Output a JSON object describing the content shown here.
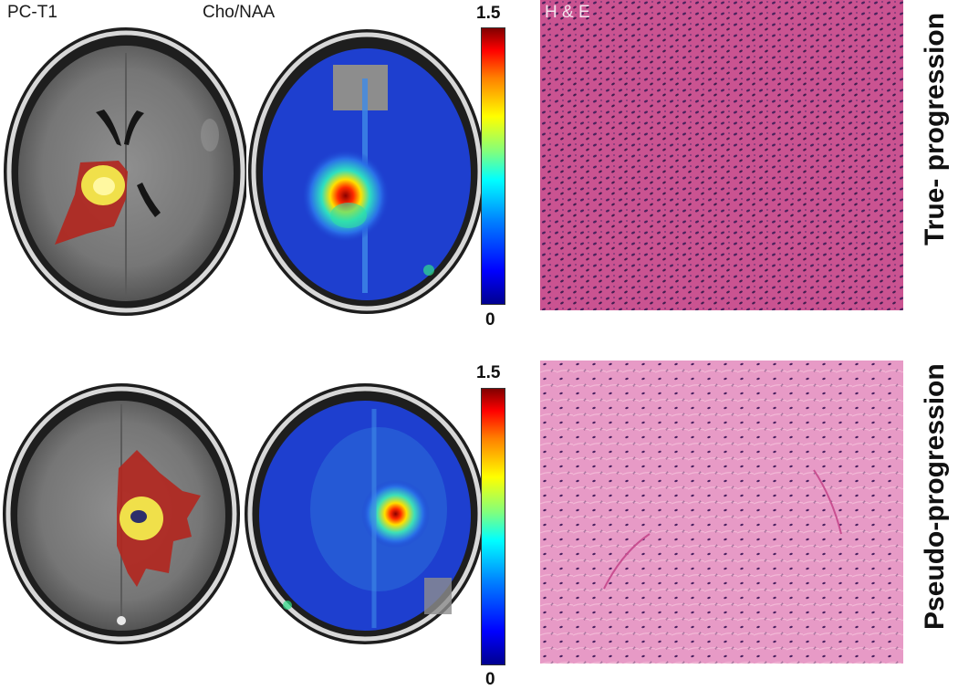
{
  "headers": {
    "pc_t1": "PC-T1",
    "cho_naa": "Cho/NAA",
    "he": "H & E"
  },
  "colorbar_top": {
    "max_label": "1.5",
    "min_label": "0"
  },
  "colorbar_bottom": {
    "max_label": "1.5",
    "min_label": "0"
  },
  "row_labels": {
    "top": "True- progression",
    "bottom": "Pseudo-progression"
  },
  "colors": {
    "colormap_low": "#00008f",
    "colormap_high": "#800000",
    "lesion_overlay": "#b3261e",
    "lesion_core": "#f0e04a",
    "he_top": "#c9508f",
    "he_bottom": "#e79ac6"
  }
}
